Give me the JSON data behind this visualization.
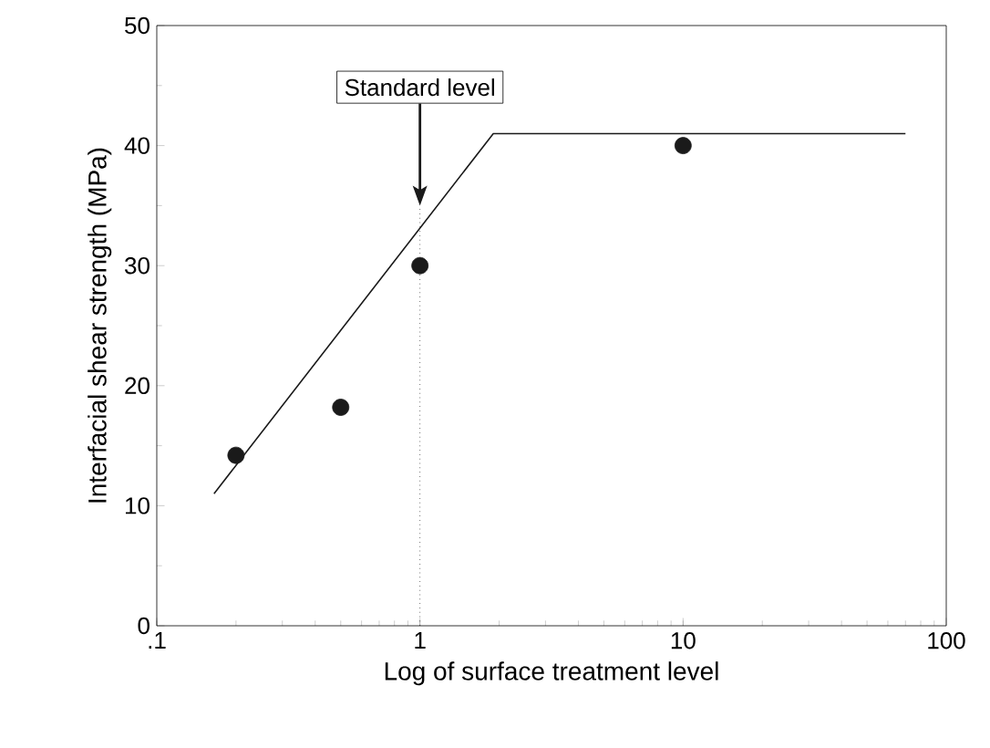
{
  "chart_data": {
    "type": "scatter",
    "xlabel": "Log of surface treatment level",
    "ylabel": "Interfacial shear strength  (MPa)",
    "log": "x",
    "xlim": [
      0.1,
      100
    ],
    "ylim": [
      0,
      50
    ],
    "xticks": [
      {
        "value": 0.1,
        "label": ".1"
      },
      1,
      10,
      100
    ],
    "yticks": [
      0,
      10,
      20,
      30,
      40,
      50
    ],
    "grid": false,
    "series": [
      {
        "type": "scatter",
        "color": "#1a1a1a",
        "marker": "circle",
        "x": [
          0.2,
          0.5,
          1,
          10
        ],
        "values": [
          14.2,
          18.2,
          30,
          40
        ]
      },
      {
        "type": "line",
        "color": "#1a1a1a",
        "marker": "none",
        "line_style": "solid",
        "x": [
          0.165,
          1.9,
          70
        ],
        "values": [
          11,
          41,
          41
        ]
      }
    ],
    "ref_lines": [
      {
        "axis": "x",
        "value": 1,
        "label": "Standard level",
        "line_style": "dotted",
        "color": "#1a1a1a"
      }
    ]
  }
}
